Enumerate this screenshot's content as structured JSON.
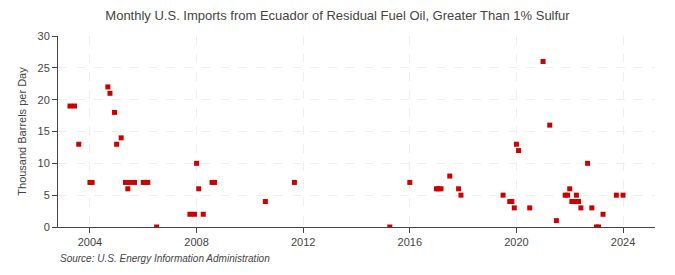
{
  "chart_data": {
    "type": "scatter",
    "title": "Monthly U.S. Imports from Ecuador of Residual Fuel Oil, Greater Than 1% Sulfur",
    "ylabel": "Thousand Barrels per Day",
    "annotations": [
      "Source: U.S. Energy Information Administration"
    ],
    "color": "#cc0000",
    "marker": "square",
    "grid": true,
    "xlim": [
      2002.8,
      2025.2
    ],
    "xticks": [
      2004,
      2008,
      2012,
      2016,
      2020,
      2024
    ],
    "ylim": [
      0,
      30
    ],
    "yticks": [
      0,
      5,
      10,
      15,
      20,
      25,
      30
    ],
    "x": [
      2003.25,
      2003.42,
      2003.58,
      2004.0,
      2004.08,
      2004.67,
      2004.75,
      2004.92,
      2005.0,
      2005.17,
      2005.33,
      2005.42,
      2005.5,
      2005.67,
      2006.0,
      2006.08,
      2006.17,
      2006.5,
      2007.75,
      2007.92,
      2008.0,
      2008.08,
      2008.25,
      2008.58,
      2008.67,
      2010.58,
      2011.67,
      2015.25,
      2016.0,
      2017.0,
      2017.08,
      2017.17,
      2017.5,
      2017.83,
      2017.92,
      2019.5,
      2019.75,
      2019.83,
      2019.92,
      2020.0,
      2020.08,
      2020.5,
      2021.0,
      2021.25,
      2021.5,
      2021.83,
      2021.92,
      2022.0,
      2022.08,
      2022.17,
      2022.25,
      2022.33,
      2022.42,
      2022.67,
      2022.83,
      2023.0,
      2023.08,
      2023.25,
      2023.75,
      2024.0
    ],
    "values": [
      19,
      19,
      13,
      7,
      7,
      22,
      21,
      18,
      13,
      14,
      7,
      6,
      7,
      7,
      7,
      7,
      7,
      0,
      2,
      2,
      10,
      6,
      2,
      7,
      7,
      4,
      7,
      0,
      7,
      6,
      6,
      6,
      8,
      6,
      5,
      5,
      4,
      4,
      3,
      13,
      12,
      3,
      26,
      16,
      1,
      5,
      5,
      6,
      4,
      4,
      5,
      4,
      3,
      10,
      3,
      0,
      0,
      2,
      5,
      5
    ]
  }
}
